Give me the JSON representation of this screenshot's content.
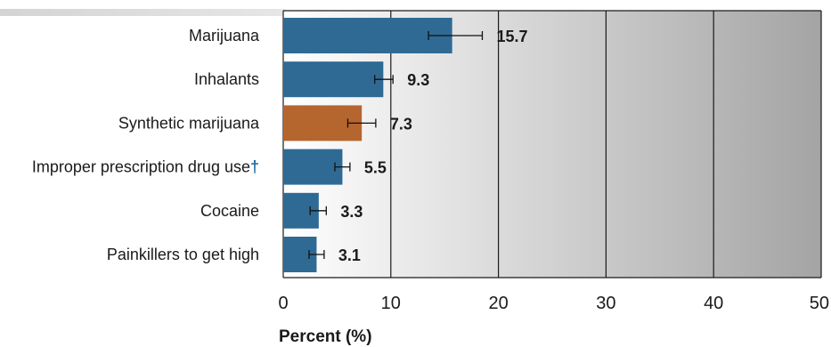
{
  "chart_data": {
    "type": "bar",
    "orientation": "horizontal",
    "categories": [
      "Marijuana",
      "Inhalants",
      "Synthetic marijuana",
      "Improper prescription drug use",
      "Cocaine",
      "Painkillers to get high"
    ],
    "category_marks": [
      "",
      "",
      "",
      "†",
      "",
      ""
    ],
    "values": [
      15.7,
      9.3,
      7.3,
      5.5,
      3.3,
      3.1
    ],
    "value_labels": [
      "15.7",
      "9.3",
      "7.3",
      "5.5",
      "3.3",
      "3.1"
    ],
    "error_bars": [
      [
        13.5,
        18.5
      ],
      [
        8.5,
        10.2
      ],
      [
        6.0,
        8.6
      ],
      [
        4.8,
        6.2
      ],
      [
        2.5,
        4.0
      ],
      [
        2.4,
        3.8
      ]
    ],
    "highlight_index": 2,
    "xlabel": "Percent (%)",
    "xlim": [
      0,
      50
    ],
    "xticks": [
      0,
      10,
      20,
      30,
      40,
      50
    ],
    "colors": {
      "bar": "#2f6a94",
      "highlight": "#b5652e",
      "grid": "#1a1a1a",
      "dagger": "#1f6fa8"
    }
  }
}
